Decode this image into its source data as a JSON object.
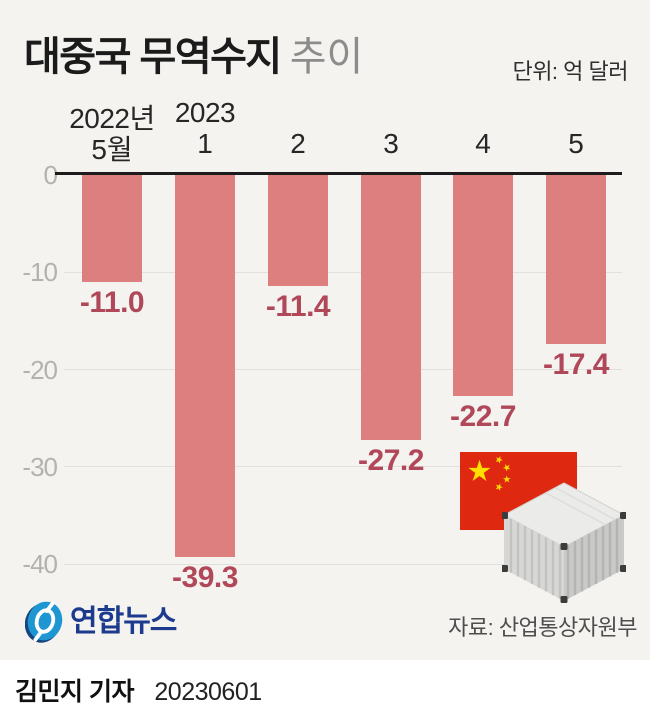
{
  "header": {
    "title_main": "대중국 무역수지",
    "title_suffix": "추이",
    "unit_label": "단위: 억 달러"
  },
  "axis": {
    "year_labels": [
      "2022년",
      "2023"
    ]
  },
  "chart_data": {
    "type": "bar",
    "title": "대중국 무역수지 추이",
    "xlabel": "월",
    "ylabel": "억 달러",
    "categories": [
      "5월",
      "1",
      "2",
      "3",
      "4",
      "5"
    ],
    "values": [
      -11.0,
      -39.3,
      -11.4,
      -27.2,
      -22.7,
      -17.4
    ],
    "data_labels": [
      "-11.0",
      "-39.3",
      "-11.4",
      "-27.2",
      "-22.7",
      "-17.4"
    ],
    "y_ticks": [
      0,
      -10,
      -20,
      -30,
      -40
    ],
    "ylim": [
      -42,
      0
    ],
    "grid": true,
    "legend": "none"
  },
  "branding": {
    "logo_text": "연합뉴스"
  },
  "source_label": "자료: 산업통상자원부",
  "footer": {
    "byline": "김민지 기자",
    "date": "20230601"
  },
  "colors": {
    "background": "#f4f3f0",
    "bar": "#dd7f7e",
    "value_label": "#b0485a",
    "axis_line": "#1c1c1c",
    "gridline": "#e2e0dc",
    "tick_label": "#b4b2ae",
    "flag_red": "#de2910",
    "flag_gold": "#ffde00",
    "logo_blue": "#1e96d2",
    "logo_navy": "#16457e",
    "logo_text_blue": "#1c3a8e"
  }
}
